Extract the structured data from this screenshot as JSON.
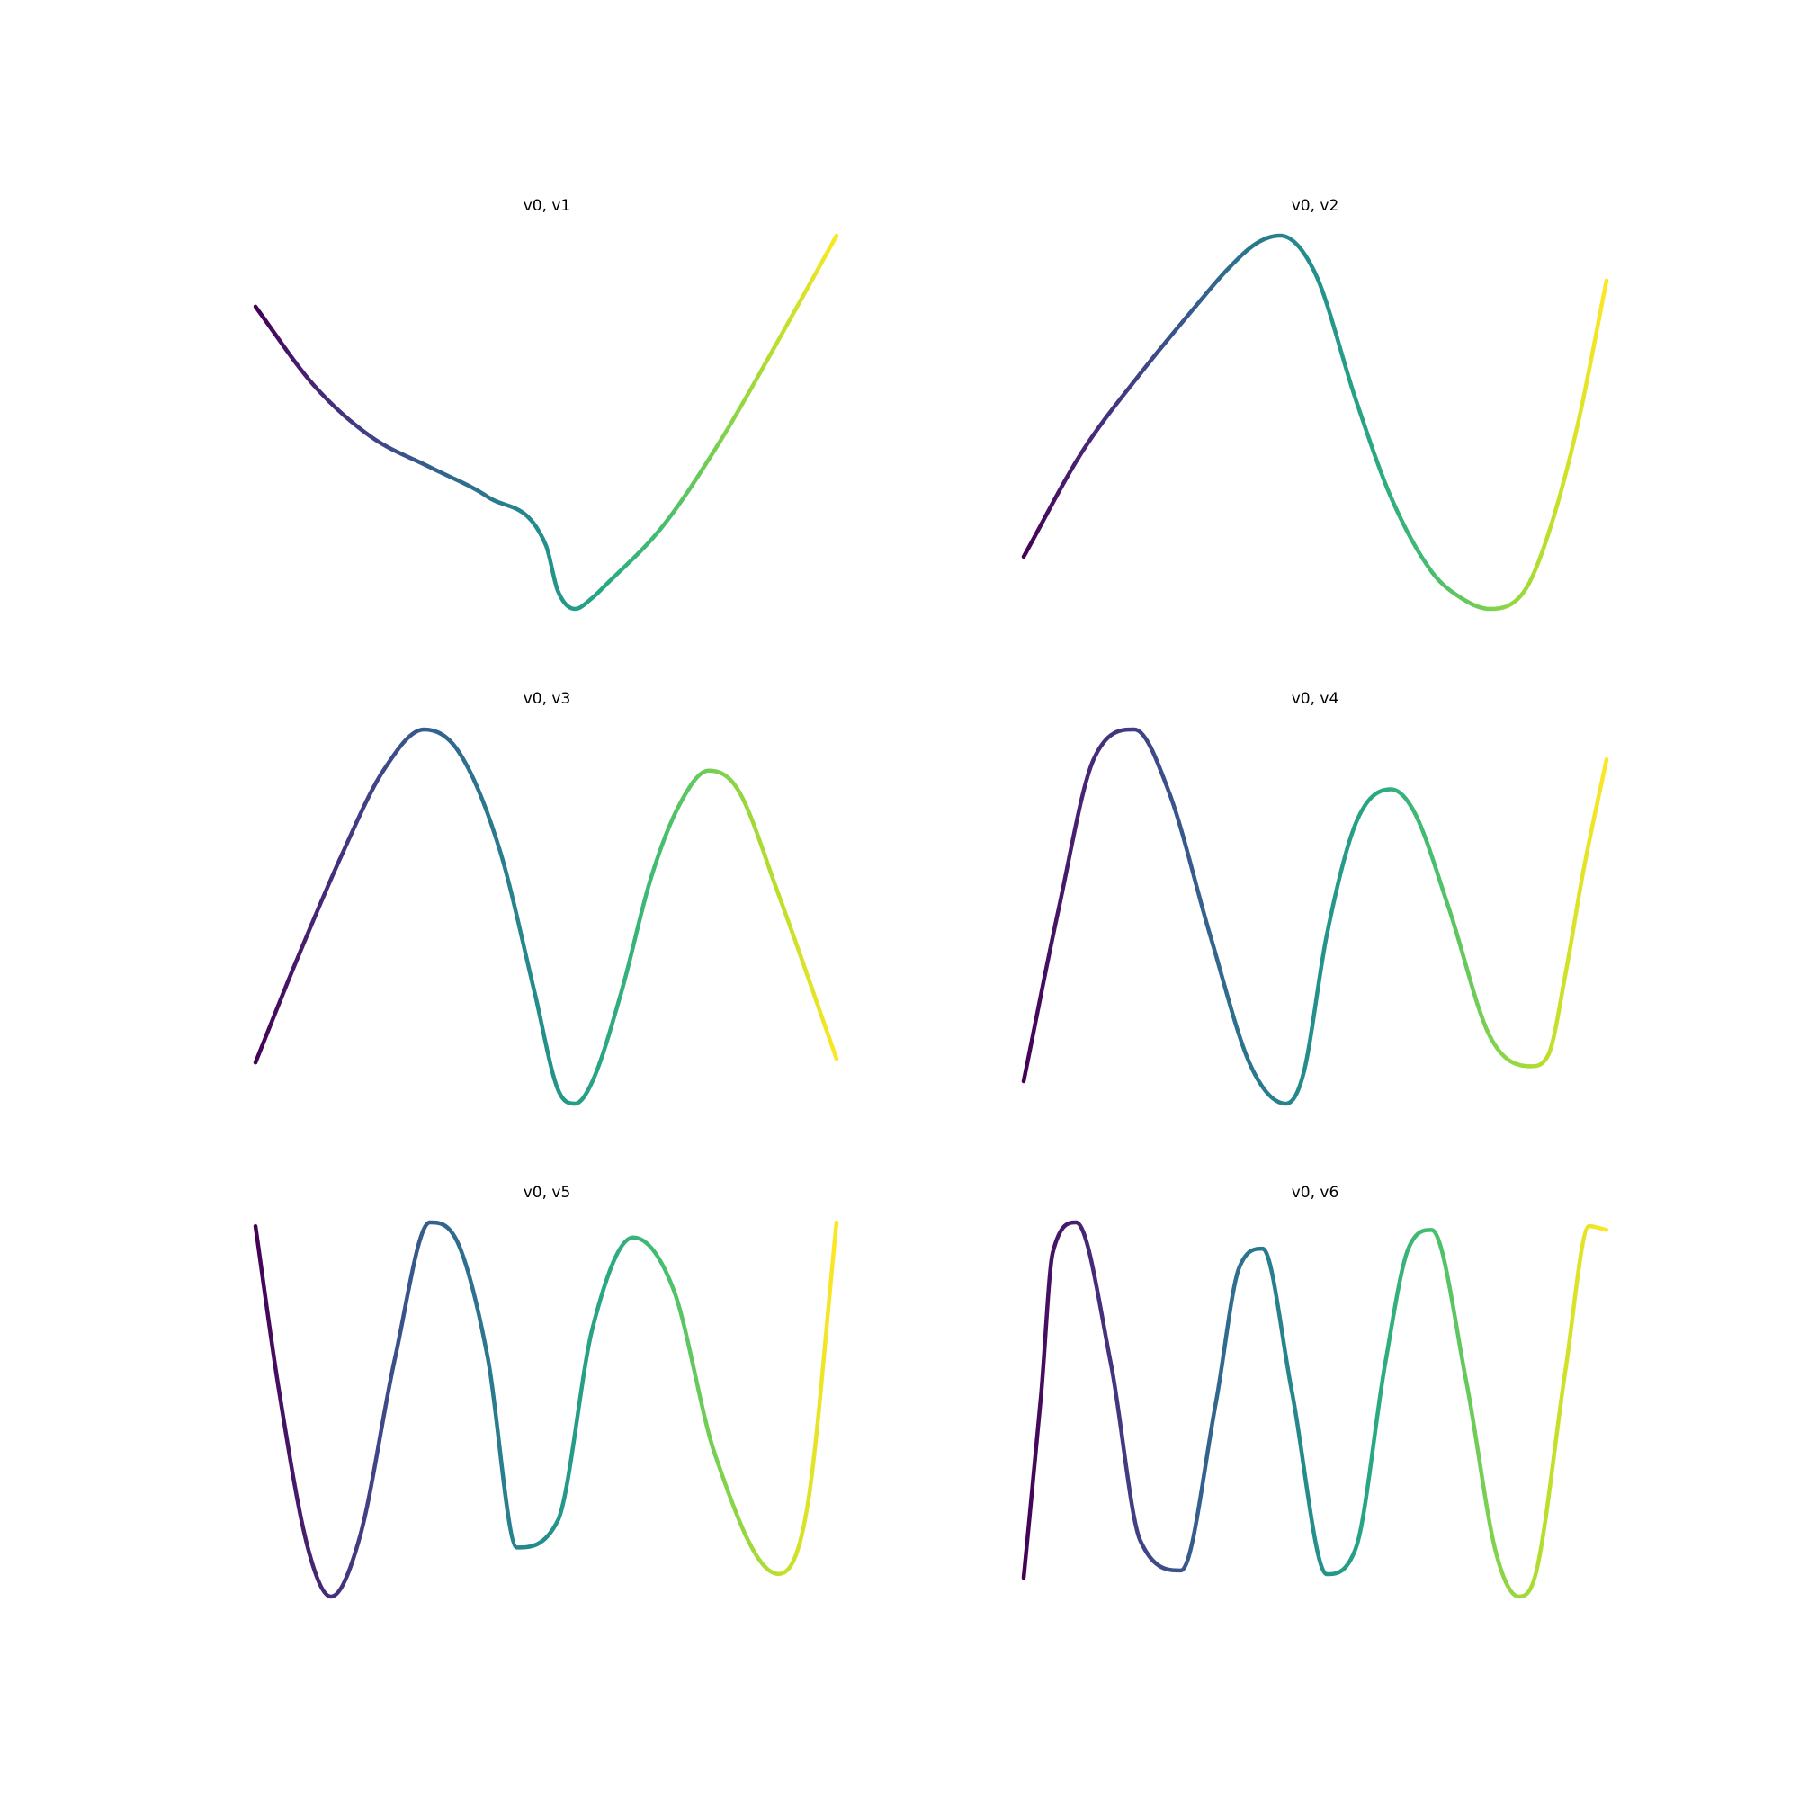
{
  "chart_data": [
    {
      "type": "line",
      "title": "v0, v1",
      "x": [
        0.0,
        0.1,
        0.2,
        0.3,
        0.4,
        0.5,
        0.52,
        0.55,
        0.58,
        0.6,
        0.7,
        0.8,
        0.9,
        1.0
      ],
      "y": [
        0.81,
        0.6,
        0.46,
        0.38,
        0.3,
        0.17,
        0.05,
        0.0,
        0.03,
        0.06,
        0.22,
        0.45,
        0.72,
        1.0
      ]
    },
    {
      "type": "line",
      "title": "v0, v2",
      "x": [
        0.0,
        0.1,
        0.2,
        0.3,
        0.35,
        0.4,
        0.44,
        0.5,
        0.57,
        0.63,
        0.7,
        0.75,
        0.8,
        0.86,
        0.9,
        0.95,
        1.0
      ],
      "y": [
        0.14,
        0.42,
        0.63,
        0.82,
        0.91,
        0.98,
        1.0,
        0.9,
        0.56,
        0.3,
        0.1,
        0.03,
        0.0,
        0.05,
        0.2,
        0.49,
        0.88
      ]
    },
    {
      "type": "line",
      "title": "v0, v3",
      "x": [
        0.0,
        0.07,
        0.15,
        0.22,
        0.29,
        0.35,
        0.42,
        0.48,
        0.52,
        0.55,
        0.58,
        0.63,
        0.68,
        0.73,
        0.78,
        0.83,
        0.9,
        1.0
      ],
      "y": [
        0.11,
        0.38,
        0.67,
        0.89,
        1.0,
        0.94,
        0.68,
        0.3,
        0.04,
        0.0,
        0.06,
        0.3,
        0.6,
        0.8,
        0.89,
        0.84,
        0.56,
        0.12
      ]
    },
    {
      "type": "line",
      "title": "v0, v4",
      "x": [
        0.0,
        0.06,
        0.12,
        0.19,
        0.25,
        0.32,
        0.39,
        0.45,
        0.48,
        0.52,
        0.57,
        0.63,
        0.67,
        0.73,
        0.8,
        0.87,
        0.9,
        0.93,
        0.96,
        1.0
      ],
      "y": [
        0.06,
        0.52,
        0.92,
        1.0,
        0.83,
        0.45,
        0.1,
        0.0,
        0.08,
        0.45,
        0.75,
        0.84,
        0.78,
        0.52,
        0.18,
        0.1,
        0.13,
        0.35,
        0.62,
        0.92
      ]
    },
    {
      "type": "line",
      "title": "v0, v5",
      "x": [
        0.0,
        0.04,
        0.09,
        0.13,
        0.18,
        0.24,
        0.3,
        0.35,
        0.4,
        0.45,
        0.52,
        0.58,
        0.65,
        0.72,
        0.79,
        0.9,
        0.95,
        1.0
      ],
      "y": [
        0.98,
        0.55,
        0.13,
        0.0,
        0.16,
        0.63,
        0.99,
        0.93,
        0.63,
        0.13,
        0.2,
        0.71,
        0.95,
        0.81,
        0.38,
        0.06,
        0.24,
        0.99
      ]
    },
    {
      "type": "line",
      "title": "v0, v6",
      "x": [
        0.0,
        0.03,
        0.05,
        0.09,
        0.15,
        0.2,
        0.27,
        0.33,
        0.37,
        0.41,
        0.46,
        0.52,
        0.57,
        0.62,
        0.66,
        0.7,
        0.76,
        0.81,
        0.85,
        0.88,
        0.93,
        0.97,
        1.0
      ],
      "y": [
        0.05,
        0.54,
        0.92,
        1.0,
        0.62,
        0.15,
        0.07,
        0.52,
        0.88,
        0.93,
        0.55,
        0.06,
        0.13,
        0.62,
        0.93,
        0.98,
        0.57,
        0.12,
        0.0,
        0.07,
        0.61,
        0.99,
        0.98
      ]
    }
  ]
}
